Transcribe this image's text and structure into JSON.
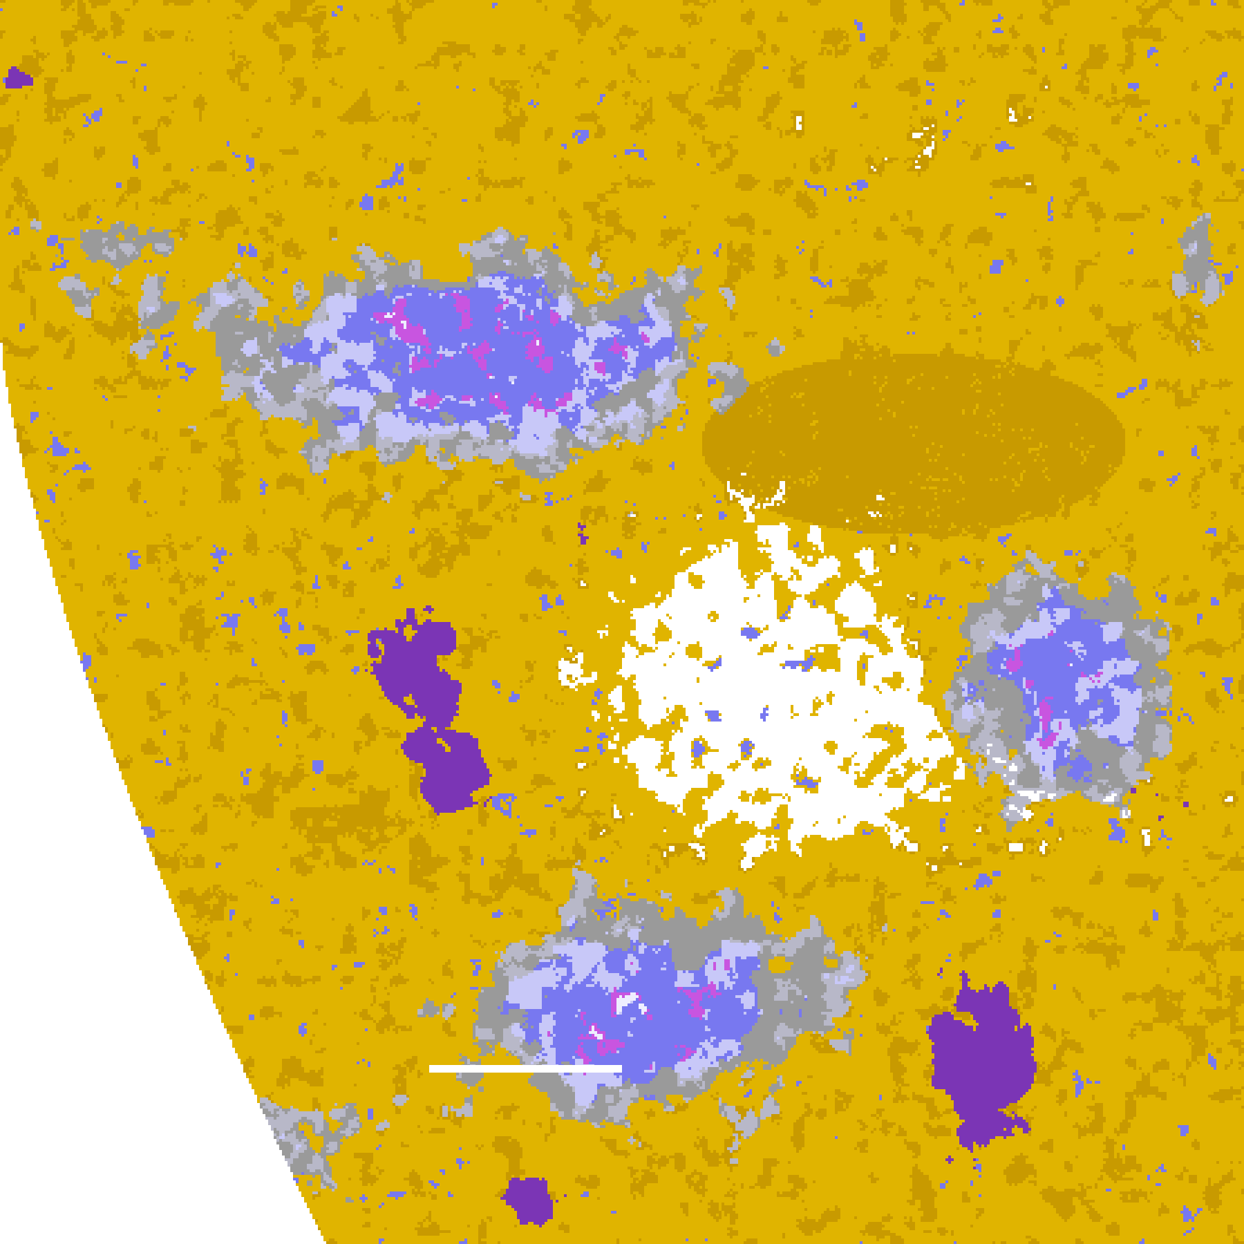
{
  "image": {
    "kind": "satellite cloud classification imagery",
    "palette": {
      "clear": "#FFFFFF",
      "gold": "#E0B400",
      "dark_gold": "#C89A00",
      "gray": "#9A9A9A",
      "light_gray": "#B8B8C8",
      "pale_lavender": "#EEEEFF",
      "lavender": "#C8C8F8",
      "periwinkle": "#7878F0",
      "purple": "#7B35B5",
      "magenta": "#C855E0"
    },
    "space_background": "#FFFFFF",
    "scale_bar_color": "#FFFFFF"
  }
}
